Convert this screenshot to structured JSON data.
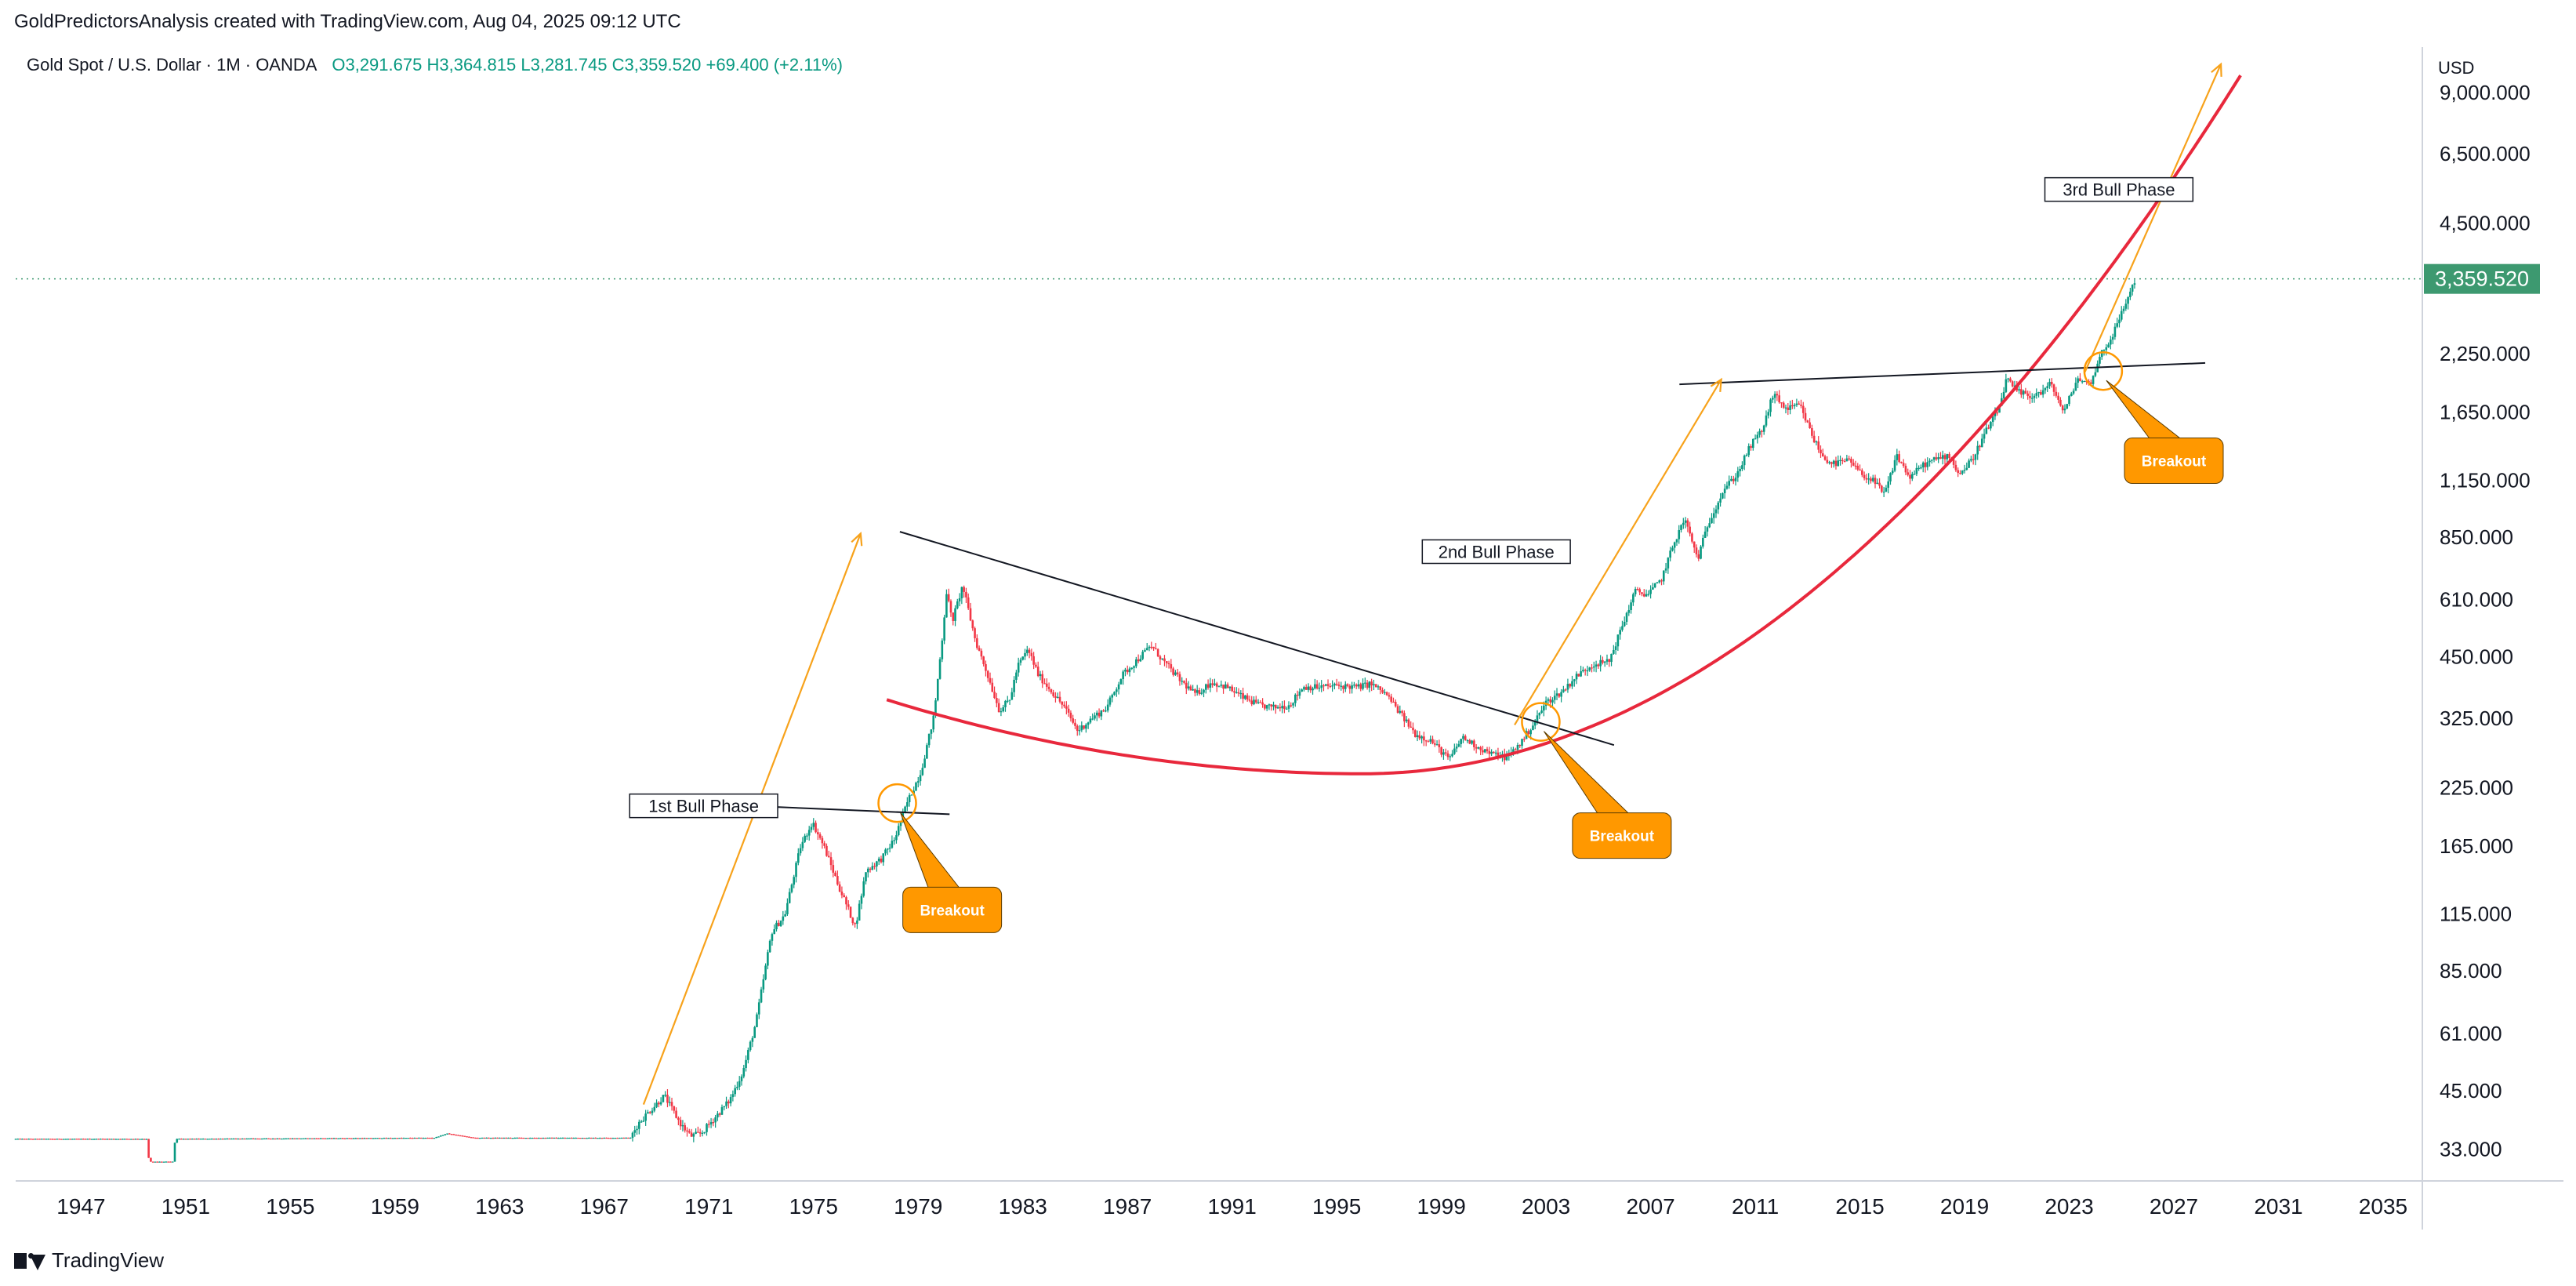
{
  "attribution": "GoldPredictorsAnalysis created with TradingView.com, Aug 04, 2025 09:12 UTC",
  "legend": {
    "symbol": "Gold Spot / U.S. Dollar · 1M · OANDA",
    "open": "O3,291.675",
    "high": "H3,364.815",
    "low": "L3,281.745",
    "close": "C3,359.520",
    "change": "+69.400 (+2.11%)"
  },
  "currency_label": "USD",
  "branding": "TradingView",
  "colors": {
    "up": "#089981",
    "down": "#f23645",
    "curve": "#e8283c",
    "arrow": "#f7a21b",
    "callout": "#ff9800",
    "price_tag": "#3d9970"
  },
  "chart_data": {
    "type": "candlestick",
    "y_scale": "log",
    "ylim": [
      28,
      11500
    ],
    "xlim": [
      1944.5,
      2036.5
    ],
    "x_ticks": [
      "1947",
      "1951",
      "1955",
      "1959",
      "1963",
      "1967",
      "1971",
      "1975",
      "1979",
      "1983",
      "1987",
      "1991",
      "1995",
      "1999",
      "2003",
      "2007",
      "2011",
      "2015",
      "2019",
      "2023",
      "2027",
      "2031",
      "2035"
    ],
    "y_ticks": [
      "9,000.000",
      "6,500.000",
      "4,500.000",
      "2,250.000",
      "1,650.000",
      "1,150.000",
      "850.000",
      "610.000",
      "450.000",
      "325.000",
      "225.000",
      "165.000",
      "115.000",
      "85.000",
      "61.000",
      "45.000",
      "33.000"
    ],
    "last_price": "3,359.520",
    "price_path": [
      [
        1944.5,
        35
      ],
      [
        1949.5,
        35
      ],
      [
        1949.6,
        31
      ],
      [
        1950.5,
        31
      ],
      [
        1950.6,
        35
      ],
      [
        1960.5,
        35.2
      ],
      [
        1961,
        36
      ],
      [
        1962,
        35.2
      ],
      [
        1968,
        35.2
      ],
      [
        1968.3,
        38
      ],
      [
        1968.8,
        41
      ],
      [
        1969.3,
        44
      ],
      [
        1969.9,
        38
      ],
      [
        1970.3,
        35.5
      ],
      [
        1970.7,
        36
      ],
      [
        1971.2,
        39
      ],
      [
        1971.8,
        43
      ],
      [
        1972.3,
        50
      ],
      [
        1972.8,
        65
      ],
      [
        1973.4,
        105
      ],
      [
        1973.9,
        115
      ],
      [
        1974.5,
        165
      ],
      [
        1974.95,
        188
      ],
      [
        1975.4,
        165
      ],
      [
        1976.0,
        132
      ],
      [
        1976.6,
        108
      ],
      [
        1977.0,
        145
      ],
      [
        1977.6,
        155
      ],
      [
        1978.1,
        172
      ],
      [
        1978.6,
        210
      ],
      [
        1979.1,
        245
      ],
      [
        1979.6,
        330
      ],
      [
        1979.95,
        520
      ],
      [
        1980.08,
        640
      ],
      [
        1980.3,
        545
      ],
      [
        1980.7,
        660
      ],
      [
        1981.2,
        490
      ],
      [
        1981.6,
        420
      ],
      [
        1982.1,
        340
      ],
      [
        1982.5,
        360
      ],
      [
        1982.8,
        430
      ],
      [
        1983.2,
        470
      ],
      [
        1983.6,
        410
      ],
      [
        1984.2,
        370
      ],
      [
        1984.6,
        345
      ],
      [
        1985.1,
        305
      ],
      [
        1985.6,
        325
      ],
      [
        1986.2,
        345
      ],
      [
        1986.8,
        410
      ],
      [
        1987.3,
        440
      ],
      [
        1987.9,
        480
      ],
      [
        1988.4,
        440
      ],
      [
        1989.0,
        400
      ],
      [
        1989.6,
        370
      ],
      [
        1990.2,
        395
      ],
      [
        1990.8,
        385
      ],
      [
        1991.4,
        365
      ],
      [
        1992.0,
        350
      ],
      [
        1992.6,
        345
      ],
      [
        1993.2,
        350
      ],
      [
        1993.7,
        385
      ],
      [
        1994.3,
        385
      ],
      [
        1995.0,
        388
      ],
      [
        1995.8,
        385
      ],
      [
        1996.3,
        392
      ],
      [
        1996.9,
        370
      ],
      [
        1997.5,
        330
      ],
      [
        1998.0,
        300
      ],
      [
        1998.6,
        290
      ],
      [
        1999.3,
        262
      ],
      [
        1999.8,
        295
      ],
      [
        2000.4,
        280
      ],
      [
        2000.9,
        270
      ],
      [
        2001.5,
        265
      ],
      [
        2002.0,
        285
      ],
      [
        2002.5,
        315
      ],
      [
        2003.0,
        355
      ],
      [
        2003.6,
        375
      ],
      [
        2004.2,
        410
      ],
      [
        2004.8,
        435
      ],
      [
        2005.4,
        440
      ],
      [
        2006.0,
        550
      ],
      [
        2006.4,
        640
      ],
      [
        2006.9,
        630
      ],
      [
        2007.4,
        680
      ],
      [
        2007.9,
        830
      ],
      [
        2008.3,
        940
      ],
      [
        2008.8,
        760
      ],
      [
        2009.2,
        920
      ],
      [
        2009.8,
        1100
      ],
      [
        2010.3,
        1190
      ],
      [
        2010.8,
        1380
      ],
      [
        2011.3,
        1520
      ],
      [
        2011.68,
        1825
      ],
      [
        2012.2,
        1680
      ],
      [
        2012.7,
        1720
      ],
      [
        2013.2,
        1450
      ],
      [
        2013.6,
        1300
      ],
      [
        2014.0,
        1260
      ],
      [
        2014.6,
        1280
      ],
      [
        2015.0,
        1200
      ],
      [
        2015.5,
        1150
      ],
      [
        2015.95,
        1070
      ],
      [
        2016.4,
        1320
      ],
      [
        2016.9,
        1170
      ],
      [
        2017.4,
        1250
      ],
      [
        2017.9,
        1290
      ],
      [
        2018.4,
        1320
      ],
      [
        2018.8,
        1190
      ],
      [
        2019.3,
        1290
      ],
      [
        2019.8,
        1490
      ],
      [
        2020.3,
        1680
      ],
      [
        2020.6,
        1970
      ],
      [
        2021.0,
        1850
      ],
      [
        2021.5,
        1800
      ],
      [
        2022.0,
        1850
      ],
      [
        2022.3,
        1930
      ],
      [
        2022.8,
        1650
      ],
      [
        2023.3,
        1980
      ],
      [
        2023.8,
        1920
      ],
      [
        2024.2,
        2250
      ],
      [
        2024.6,
        2450
      ],
      [
        2024.9,
        2700
      ],
      [
        2025.2,
        3000
      ],
      [
        2025.5,
        3320
      ],
      [
        2025.58,
        3359.52
      ]
    ],
    "support_curve": {
      "low_point": [
        1996.0,
        243
      ],
      "left_start": [
        1977.8,
        360
      ],
      "right_end": [
        2029.6,
        10000
      ]
    },
    "trendlines": [
      {
        "from": [
          1972.5,
          205
        ],
        "to": [
          1980.2,
          196
        ]
      },
      {
        "from": [
          1978.3,
          878
        ],
        "to": [
          2005.6,
          283
        ]
      },
      {
        "from": [
          2008.1,
          1920
        ],
        "to": [
          2028.2,
          2150
        ]
      }
    ],
    "arrows": [
      {
        "from": [
          1968.5,
          42
        ],
        "to": [
          1976.8,
          870
        ]
      },
      {
        "from": [
          2001.8,
          315
        ],
        "to": [
          2009.7,
          1970
        ]
      },
      {
        "from": [
          2023.6,
          2050
        ],
        "to": [
          2028.8,
          10500
        ]
      }
    ],
    "breakout_circles": [
      {
        "at": [
          1978.2,
          208
        ],
        "callout_at": [
          1980.3,
          118
        ],
        "label": "Breakout"
      },
      {
        "at": [
          2002.8,
          320
        ],
        "callout_at": [
          2005.9,
          175
        ],
        "label": "Breakout"
      },
      {
        "at": [
          2024.3,
          2060
        ],
        "callout_at": [
          2027.0,
          1280
        ],
        "label": "Breakout"
      }
    ],
    "phase_labels": [
      {
        "at": [
          1970.8,
          205
        ],
        "text": "1st Bull Phase"
      },
      {
        "at": [
          2001.1,
          790
        ],
        "text": "2nd Bull Phase"
      },
      {
        "at": [
          2024.9,
          5400
        ],
        "text": "3rd Bull Phase"
      }
    ]
  }
}
